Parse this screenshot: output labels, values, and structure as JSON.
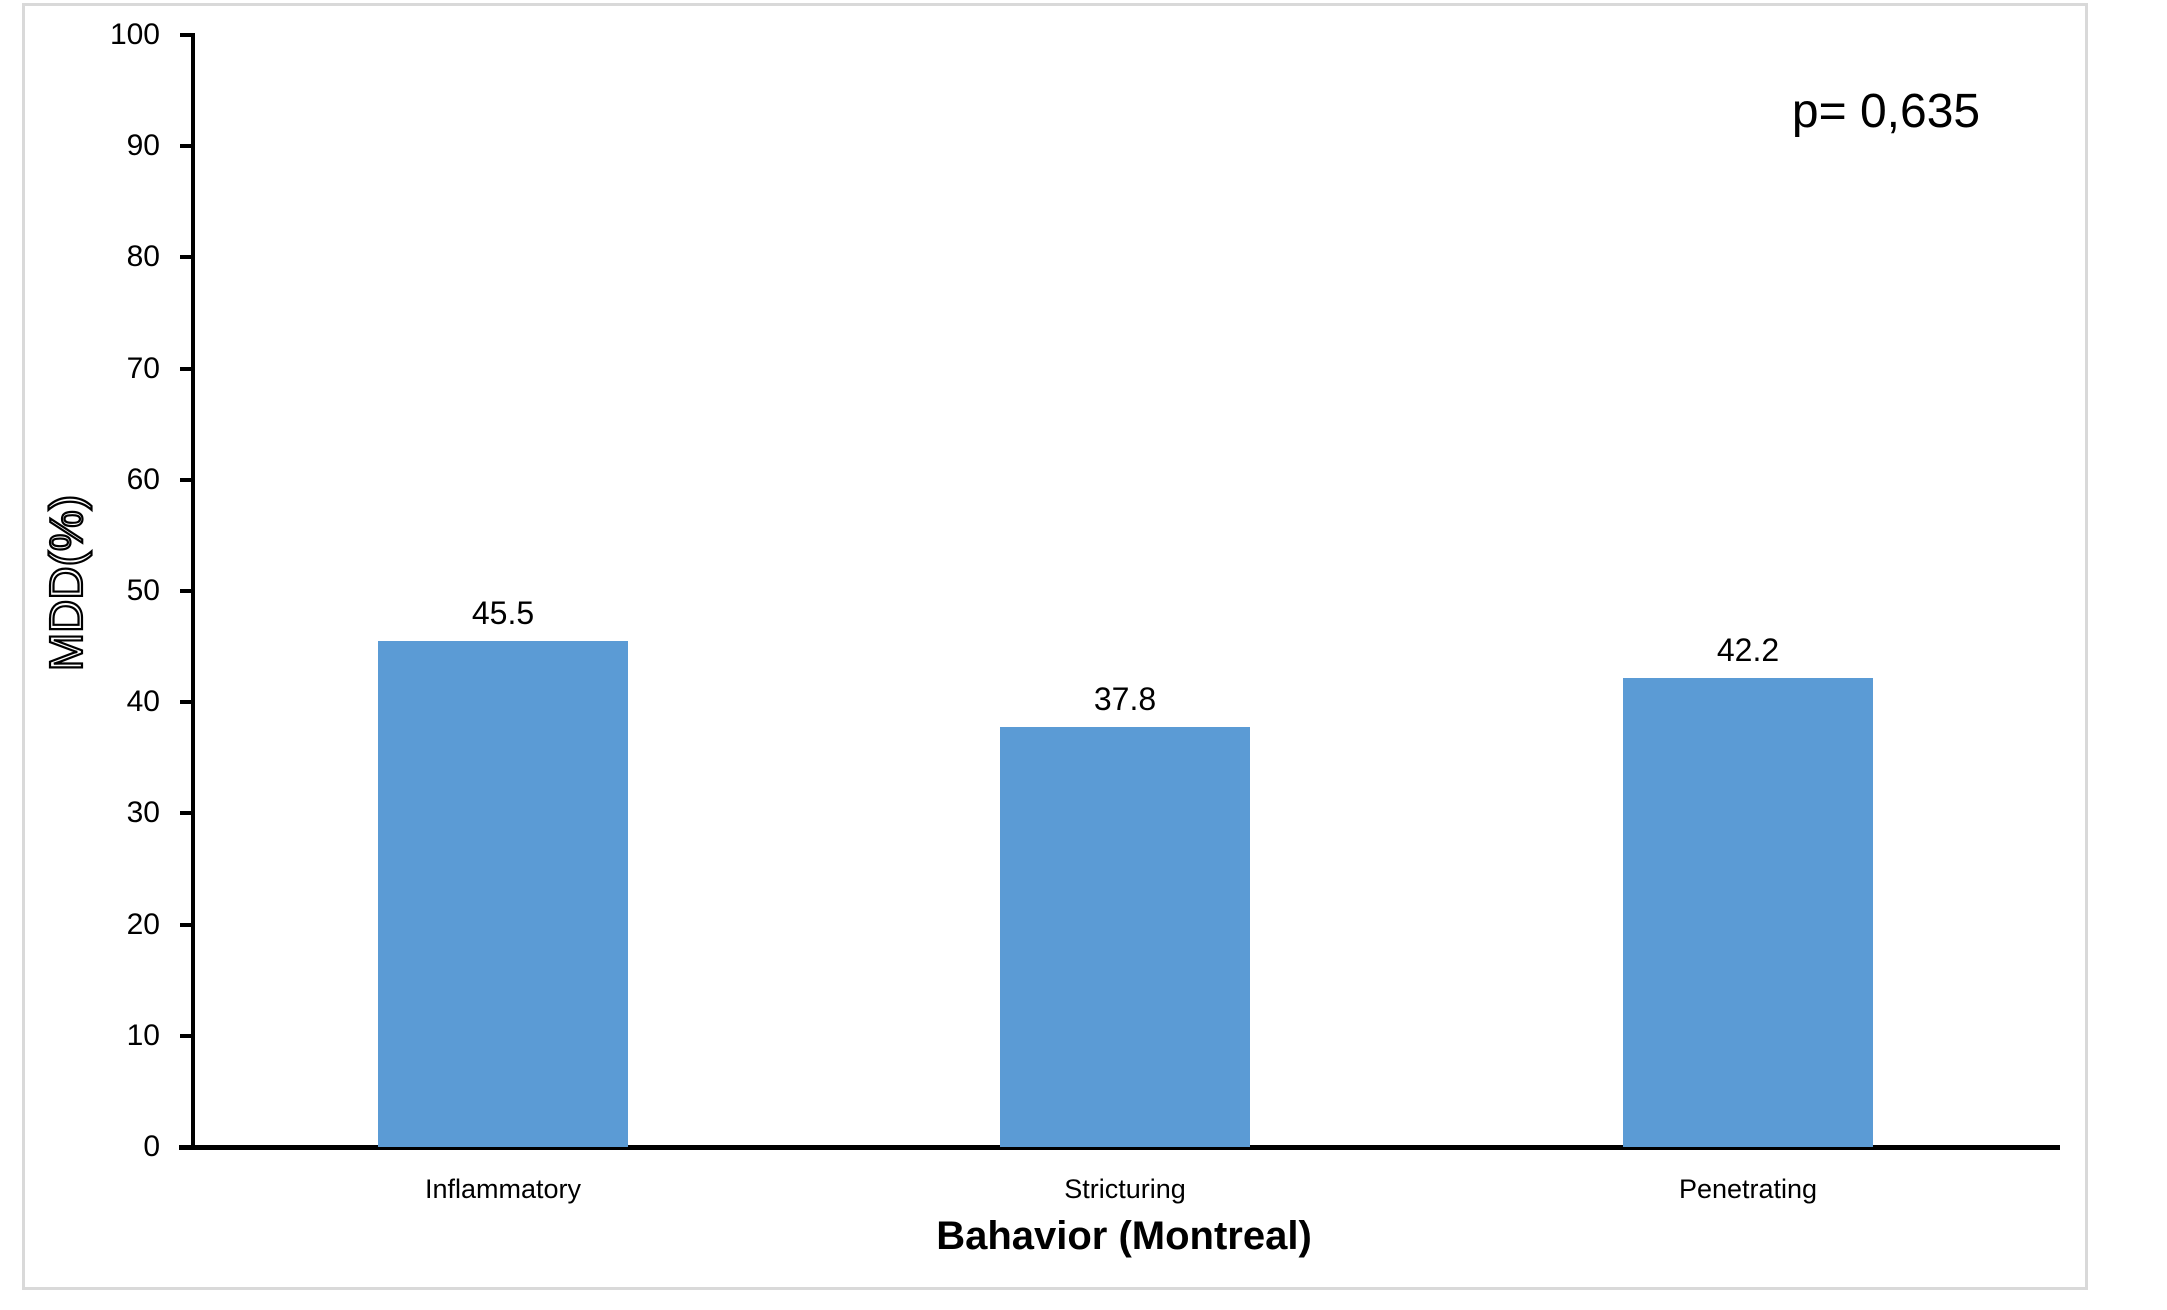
{
  "chart_data": {
    "type": "bar",
    "title": "",
    "xlabel": "Bahavior (Montreal)",
    "ylabel": "MDD(%)",
    "annotation": "p= 0,635",
    "categories": [
      "Inflammatory",
      "Stricturing",
      "Penetrating"
    ],
    "values": [
      45.5,
      37.8,
      42.2
    ],
    "data_labels": [
      "45.5",
      "37.8",
      "42.2"
    ],
    "ylim": [
      0,
      100
    ],
    "yticks": [
      0,
      10,
      20,
      30,
      40,
      50,
      60,
      70,
      80,
      90,
      100
    ],
    "grid": false,
    "legend": "none",
    "bar_color": "#5B9BD5",
    "axis_color": "#000000",
    "text_color": "#000000",
    "frame_border_color": "#D9D9D9",
    "background_color": "#FFFFFF"
  }
}
